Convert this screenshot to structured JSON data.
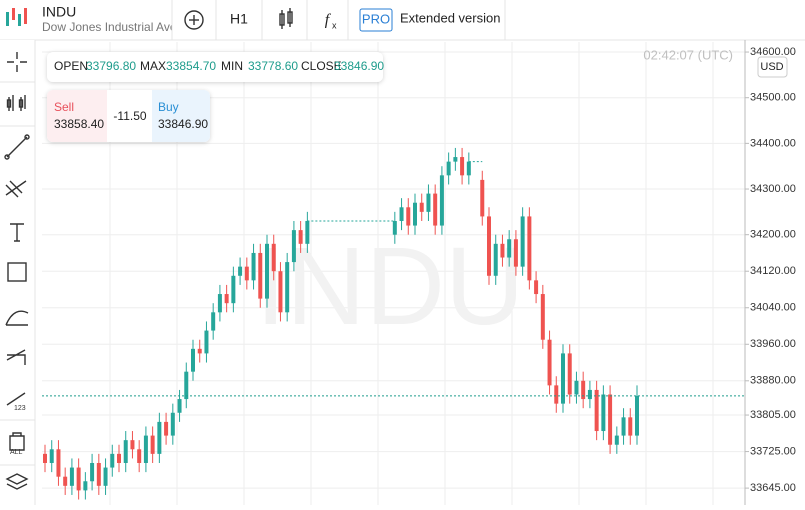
{
  "header": {
    "symbol": "INDU",
    "name": "Dow Jones Industrial Ave",
    "interval": "H1",
    "pro_badge": "PRO",
    "pro_label": "Extended version"
  },
  "ohlc": {
    "open_label": "OPEN",
    "open": "33796.80",
    "max_label": "MAX",
    "max": "33854.70",
    "min_label": "MIN",
    "min": "33778.60",
    "close_label": "CLOSE",
    "close": "33846.90"
  },
  "trade": {
    "sell_label": "Sell",
    "sell": "33858.40",
    "spread": "-11.50",
    "buy_label": "Buy",
    "buy": "33846.90"
  },
  "chart_data": {
    "type": "candlestick",
    "watermark": "INDU",
    "time": "02:42:07 (UTC)",
    "currency": "USD",
    "up_color": "#26a69a",
    "down_color": "#ef5350",
    "grid": true,
    "last_price": 33846.9,
    "open": [
      33720,
      33700,
      33730,
      33670,
      33650,
      33690,
      33640,
      33660,
      33700,
      33650,
      33690,
      33720,
      33700,
      33750,
      33730,
      33700,
      33760,
      33720,
      33790,
      33760,
      33810,
      33840,
      33900,
      33950,
      33940,
      33990,
      34030,
      34070,
      34050,
      34110,
      34130,
      34100,
      34160,
      34060,
      34180,
      34120,
      34030,
      34140,
      34210,
      34180,
      null,
      null,
      null,
      null,
      null,
      null,
      null,
      null,
      null,
      null,
      null,
      null,
      34200,
      34230,
      34260,
      34220,
      34270,
      34250,
      34290,
      34220,
      34330,
      34360,
      34370,
      34330,
      null,
      34320,
      34240,
      34110,
      34180,
      34150,
      34190,
      34130,
      34240,
      34100,
      34070,
      33970,
      33870,
      33830,
      33940,
      33850,
      33880,
      33840,
      33860,
      33770,
      33850,
      33740,
      33760,
      33800,
      33760
    ],
    "high": [
      33740,
      33750,
      33750,
      33690,
      33710,
      33710,
      33680,
      33720,
      33720,
      33710,
      33740,
      33740,
      33770,
      33770,
      33750,
      33780,
      33780,
      33810,
      33810,
      33830,
      33860,
      33920,
      33970,
      33970,
      34010,
      34050,
      34090,
      34090,
      34130,
      34150,
      34150,
      34180,
      34180,
      34200,
      34200,
      34140,
      34160,
      34230,
      34230,
      34250,
      null,
      null,
      null,
      null,
      null,
      null,
      null,
      null,
      null,
      null,
      null,
      null,
      34250,
      34280,
      34280,
      34290,
      34290,
      34310,
      34310,
      34350,
      34380,
      34390,
      34390,
      34380,
      null,
      34340,
      34260,
      34200,
      34200,
      34210,
      34210,
      34260,
      34260,
      34120,
      34090,
      33990,
      33890,
      33960,
      33960,
      33900,
      33900,
      33880,
      33880,
      33870,
      33870,
      33780,
      33820,
      33820,
      33870
    ],
    "low": [
      33680,
      33680,
      33650,
      33630,
      33630,
      33620,
      33620,
      33640,
      33630,
      33630,
      33670,
      33680,
      33680,
      33710,
      33680,
      33680,
      33700,
      33700,
      33740,
      33740,
      33790,
      33820,
      33880,
      33920,
      33920,
      33970,
      34010,
      34030,
      34030,
      34090,
      34080,
      34080,
      34040,
      34040,
      34100,
      34010,
      34010,
      34120,
      34160,
      34160,
      null,
      null,
      null,
      null,
      null,
      null,
      null,
      null,
      null,
      null,
      null,
      null,
      34180,
      34210,
      34200,
      34200,
      34230,
      34230,
      34200,
      34200,
      34310,
      34340,
      34310,
      34310,
      null,
      34220,
      34090,
      34090,
      34130,
      34130,
      34110,
      34110,
      34080,
      34050,
      33950,
      33850,
      33810,
      33810,
      33830,
      33830,
      33820,
      33820,
      33750,
      33750,
      33720,
      33720,
      33740,
      33740,
      33740
    ],
    "close": [
      33700,
      33730,
      33670,
      33650,
      33690,
      33640,
      33660,
      33700,
      33650,
      33690,
      33720,
      33700,
      33750,
      33730,
      33700,
      33760,
      33720,
      33790,
      33760,
      33810,
      33840,
      33900,
      33950,
      33940,
      33990,
      34030,
      34070,
      34050,
      34110,
      34130,
      34100,
      34160,
      34060,
      34180,
      34120,
      34030,
      34140,
      34210,
      34180,
      34230,
      null,
      null,
      null,
      null,
      null,
      null,
      null,
      null,
      null,
      null,
      null,
      null,
      34230,
      34260,
      34220,
      34270,
      34250,
      34290,
      34220,
      34330,
      34360,
      34370,
      34330,
      34360,
      null,
      34240,
      34110,
      34180,
      34150,
      34190,
      34130,
      34240,
      34100,
      34070,
      33970,
      33870,
      33830,
      33940,
      33850,
      33880,
      33840,
      33860,
      33770,
      33850,
      33740,
      33760,
      33800,
      33760,
      33846.9
    ],
    "ylim": [
      33608,
      34622
    ],
    "yticks": [
      {
        "value": 34600,
        "label": "34600.00"
      },
      {
        "value": 34500,
        "label": "34500.00"
      },
      {
        "value": 34400,
        "label": "34400.00"
      },
      {
        "value": 34300,
        "label": "34300.00"
      },
      {
        "value": 34200,
        "label": "34200.00"
      },
      {
        "value": 34120,
        "label": "34120.00"
      },
      {
        "value": 34040,
        "label": "34040.00"
      },
      {
        "value": 33960,
        "label": "33960.00"
      },
      {
        "value": 33880,
        "label": "33880.00"
      },
      {
        "value": 33805,
        "label": "33805.00"
      },
      {
        "value": 33725,
        "label": "33725.00"
      },
      {
        "value": 33645,
        "label": "33645.00"
      }
    ]
  }
}
